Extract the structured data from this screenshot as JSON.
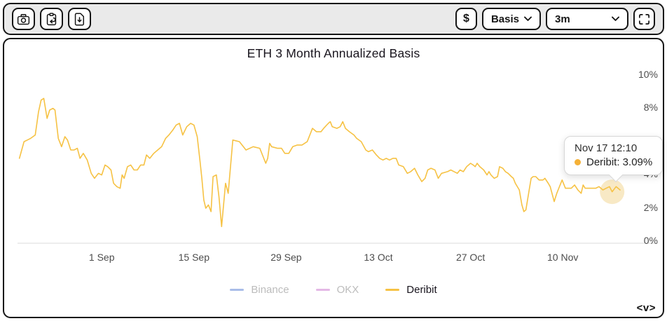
{
  "toolbar": {
    "left_buttons": [
      {
        "name": "screenshot",
        "icon": "camera-icon"
      },
      {
        "name": "copy-to-clipboard",
        "icon": "clipboard-arrow-icon"
      },
      {
        "name": "download-data",
        "icon": "file-download-icon"
      }
    ],
    "currency_label": "$",
    "basis_label": "Basis",
    "timeframe_value": "3m",
    "fullscreen_icon": "fullscreen-brackets-icon"
  },
  "tooltip": {
    "time": "Nov 17 12:10",
    "series": "Deribit",
    "value": "3.09%",
    "label": "Deribit: 3.09%",
    "day": 90.5,
    "pct": 3.09,
    "dot_color": "#f5b137",
    "highlight_color": "#f3d795"
  },
  "logo_text": "<v>",
  "colors": {
    "accent_line": "#f6c244",
    "binance": "#a9bde8",
    "okx": "#e4b8e6",
    "legend_inactive_text": "#bcbcbc",
    "legend_active_text": "#18141d",
    "axis_line": "#e2e2e2",
    "axis_text": "#4c4c4c",
    "header_bg": "#eaeaea",
    "border": "#161616"
  },
  "chart_data": {
    "type": "line",
    "title": "ETH 3 Month Annualized Basis",
    "xlabel": "",
    "ylabel": "",
    "y_unit": "%",
    "ylim": [
      0,
      10
    ],
    "y_ticks": [
      0,
      2,
      4,
      6,
      8,
      10
    ],
    "grid": false,
    "legend_position": "bottom",
    "x_domain_days": [
      0,
      92
    ],
    "x_ticks": [
      {
        "label": "1 Sep",
        "day": 13
      },
      {
        "label": "15 Sep",
        "day": 27
      },
      {
        "label": "29 Sep",
        "day": 41
      },
      {
        "label": "13 Oct",
        "day": 55
      },
      {
        "label": "27 Oct",
        "day": 69
      },
      {
        "label": "10 Nov",
        "day": 83
      }
    ],
    "series": [
      {
        "name": "Binance",
        "color": "#a9bde8",
        "visible": false,
        "points": []
      },
      {
        "name": "OKX",
        "color": "#e4b8e6",
        "visible": false,
        "points": []
      },
      {
        "name": "Deribit",
        "color": "#f6c244",
        "visible": true,
        "points": [
          [
            0.5,
            5.1
          ],
          [
            1.2,
            6.1
          ],
          [
            1.7,
            6.2
          ],
          [
            2.2,
            6.3
          ],
          [
            2.9,
            6.5
          ],
          [
            3.4,
            7.9
          ],
          [
            3.8,
            8.6
          ],
          [
            4.2,
            8.7
          ],
          [
            4.7,
            7.5
          ],
          [
            5.1,
            8.0
          ],
          [
            5.6,
            8.1
          ],
          [
            5.9,
            8.0
          ],
          [
            6.4,
            6.3
          ],
          [
            6.9,
            5.8
          ],
          [
            7.4,
            6.4
          ],
          [
            7.8,
            6.2
          ],
          [
            8.3,
            5.6
          ],
          [
            8.8,
            5.6
          ],
          [
            9.3,
            5.7
          ],
          [
            9.7,
            5.1
          ],
          [
            10.2,
            5.4
          ],
          [
            10.8,
            5.0
          ],
          [
            11.4,
            4.2
          ],
          [
            11.9,
            3.9
          ],
          [
            12.5,
            4.2
          ],
          [
            13.0,
            4.1
          ],
          [
            13.5,
            4.7
          ],
          [
            13.9,
            4.6
          ],
          [
            14.4,
            4.4
          ],
          [
            14.8,
            3.6
          ],
          [
            15.3,
            3.4
          ],
          [
            15.8,
            3.3
          ],
          [
            16.1,
            4.1
          ],
          [
            16.4,
            3.9
          ],
          [
            16.9,
            4.6
          ],
          [
            17.4,
            4.7
          ],
          [
            17.9,
            4.4
          ],
          [
            18.4,
            4.4
          ],
          [
            18.9,
            4.7
          ],
          [
            19.4,
            4.7
          ],
          [
            19.8,
            5.3
          ],
          [
            20.3,
            5.1
          ],
          [
            20.9,
            5.4
          ],
          [
            21.5,
            5.6
          ],
          [
            22.1,
            5.8
          ],
          [
            22.7,
            6.3
          ],
          [
            23.2,
            6.5
          ],
          [
            23.8,
            6.8
          ],
          [
            24.3,
            7.1
          ],
          [
            24.8,
            7.2
          ],
          [
            25.3,
            6.5
          ],
          [
            25.9,
            7.0
          ],
          [
            26.5,
            7.2
          ],
          [
            27.0,
            7.1
          ],
          [
            27.5,
            6.4
          ],
          [
            27.9,
            5.0
          ],
          [
            28.2,
            3.9
          ],
          [
            28.5,
            2.6
          ],
          [
            28.8,
            2.1
          ],
          [
            29.2,
            2.3
          ],
          [
            29.6,
            1.9
          ],
          [
            29.9,
            4.0
          ],
          [
            30.4,
            4.1
          ],
          [
            30.8,
            2.8
          ],
          [
            31.2,
            1.0
          ],
          [
            31.8,
            3.6
          ],
          [
            32.2,
            3.0
          ],
          [
            32.9,
            6.2
          ],
          [
            33.9,
            6.1
          ],
          [
            34.9,
            5.6
          ],
          [
            36.0,
            5.8
          ],
          [
            37.0,
            5.7
          ],
          [
            37.9,
            4.8
          ],
          [
            38.2,
            5.1
          ],
          [
            38.5,
            6.0
          ],
          [
            38.8,
            5.8
          ],
          [
            39.7,
            5.7
          ],
          [
            40.3,
            5.7
          ],
          [
            40.8,
            5.4
          ],
          [
            41.4,
            5.4
          ],
          [
            42.0,
            5.8
          ],
          [
            42.7,
            5.9
          ],
          [
            43.4,
            5.9
          ],
          [
            44.2,
            6.1
          ],
          [
            45.0,
            6.9
          ],
          [
            45.6,
            6.7
          ],
          [
            46.3,
            6.7
          ],
          [
            46.7,
            6.9
          ],
          [
            47.4,
            7.2
          ],
          [
            47.7,
            7.3
          ],
          [
            48.0,
            7.0
          ],
          [
            48.7,
            6.9
          ],
          [
            49.2,
            7.0
          ],
          [
            49.6,
            7.3
          ],
          [
            50.0,
            6.9
          ],
          [
            50.6,
            6.7
          ],
          [
            51.3,
            6.5
          ],
          [
            51.7,
            6.3
          ],
          [
            52.4,
            6.1
          ],
          [
            53.1,
            5.6
          ],
          [
            53.5,
            5.5
          ],
          [
            54.1,
            5.6
          ],
          [
            54.7,
            5.3
          ],
          [
            55.2,
            5.1
          ],
          [
            55.7,
            5.0
          ],
          [
            56.2,
            5.1
          ],
          [
            56.7,
            5.0
          ],
          [
            57.2,
            5.1
          ],
          [
            57.7,
            5.1
          ],
          [
            58.1,
            4.7
          ],
          [
            58.8,
            4.6
          ],
          [
            59.4,
            4.2
          ],
          [
            59.9,
            4.3
          ],
          [
            60.5,
            4.5
          ],
          [
            61.0,
            4.1
          ],
          [
            61.6,
            3.7
          ],
          [
            62.1,
            3.9
          ],
          [
            62.5,
            4.4
          ],
          [
            63.0,
            4.5
          ],
          [
            63.6,
            4.4
          ],
          [
            64.1,
            3.9
          ],
          [
            64.6,
            4.2
          ],
          [
            65.5,
            4.3
          ],
          [
            66.0,
            4.4
          ],
          [
            66.5,
            4.3
          ],
          [
            67.0,
            4.2
          ],
          [
            67.4,
            4.4
          ],
          [
            67.9,
            4.3
          ],
          [
            68.4,
            4.6
          ],
          [
            69.0,
            4.8
          ],
          [
            69.4,
            4.7
          ],
          [
            69.7,
            4.6
          ],
          [
            70.0,
            4.8
          ],
          [
            70.4,
            4.6
          ],
          [
            71.0,
            4.4
          ],
          [
            71.5,
            4.1
          ],
          [
            71.8,
            4.3
          ],
          [
            72.1,
            4.1
          ],
          [
            72.6,
            3.9
          ],
          [
            73.1,
            4.0
          ],
          [
            73.4,
            4.6
          ],
          [
            73.9,
            4.5
          ],
          [
            74.3,
            4.3
          ],
          [
            74.7,
            4.2
          ],
          [
            75.2,
            4.0
          ],
          [
            75.5,
            3.9
          ],
          [
            75.8,
            3.6
          ],
          [
            76.4,
            3.2
          ],
          [
            76.8,
            2.3
          ],
          [
            77.1,
            1.9
          ],
          [
            77.4,
            2.0
          ],
          [
            77.9,
            3.2
          ],
          [
            78.2,
            3.9
          ],
          [
            78.5,
            4.0
          ],
          [
            78.9,
            4.0
          ],
          [
            79.4,
            3.8
          ],
          [
            80.0,
            3.8
          ],
          [
            80.3,
            3.9
          ],
          [
            80.8,
            3.6
          ],
          [
            81.1,
            3.4
          ],
          [
            81.7,
            2.5
          ],
          [
            82.1,
            3.0
          ],
          [
            82.3,
            3.2
          ],
          [
            82.9,
            3.8
          ],
          [
            83.4,
            3.3
          ],
          [
            84.3,
            3.3
          ],
          [
            84.8,
            3.5
          ],
          [
            85.3,
            3.2
          ],
          [
            85.8,
            3.0
          ],
          [
            86.1,
            3.5
          ],
          [
            86.4,
            3.3
          ],
          [
            87.0,
            3.3
          ],
          [
            87.5,
            3.3
          ],
          [
            88.0,
            3.3
          ],
          [
            88.5,
            3.4
          ],
          [
            89.1,
            3.2
          ],
          [
            89.6,
            3.3
          ],
          [
            90.1,
            3.4
          ],
          [
            90.5,
            3.09
          ],
          [
            91.1,
            3.4
          ],
          [
            91.7,
            3.2
          ]
        ]
      }
    ]
  }
}
